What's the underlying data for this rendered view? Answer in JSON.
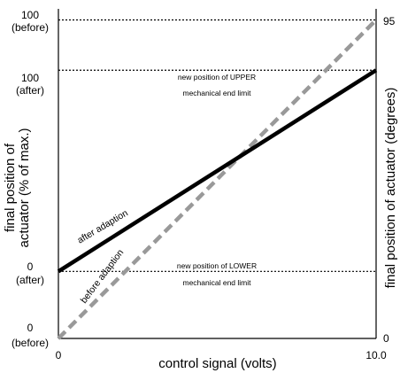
{
  "chart_data": {
    "type": "line",
    "xlabel": "control signal (volts)",
    "ylabel_left": [
      "final position of",
      "actuator (% of max.)"
    ],
    "ylabel_right": "final position of actuator (degrees)",
    "x_ticks": [
      "0",
      "10.0"
    ],
    "xlim": [
      0,
      10.0
    ],
    "left_ticks": [
      {
        "line1": "100",
        "line2": "(before)"
      },
      {
        "line1": "100",
        "line2": "(after)"
      },
      {
        "line1": "0",
        "line2": "(after)"
      },
      {
        "line1": "0",
        "line2": "(before)"
      }
    ],
    "right_ticks": [
      "95",
      "0"
    ],
    "series": [
      {
        "name": "before adaption",
        "x": [
          0,
          10.0
        ],
        "y": [
          0,
          95
        ],
        "style": "dashed",
        "color": "#999999"
      },
      {
        "name": "after adaption",
        "x": [
          0,
          10.0
        ],
        "y": [
          20,
          80
        ],
        "style": "solid",
        "color": "#000000"
      }
    ],
    "annotations": {
      "upper": [
        "new position of UPPER",
        "mechanical end limit"
      ],
      "lower": [
        "new position of LOWER",
        "mechanical end limit"
      ]
    },
    "reference_levels_degrees": {
      "before_max": 95,
      "after_max": 80,
      "after_min": 20,
      "before_min": 0
    }
  }
}
